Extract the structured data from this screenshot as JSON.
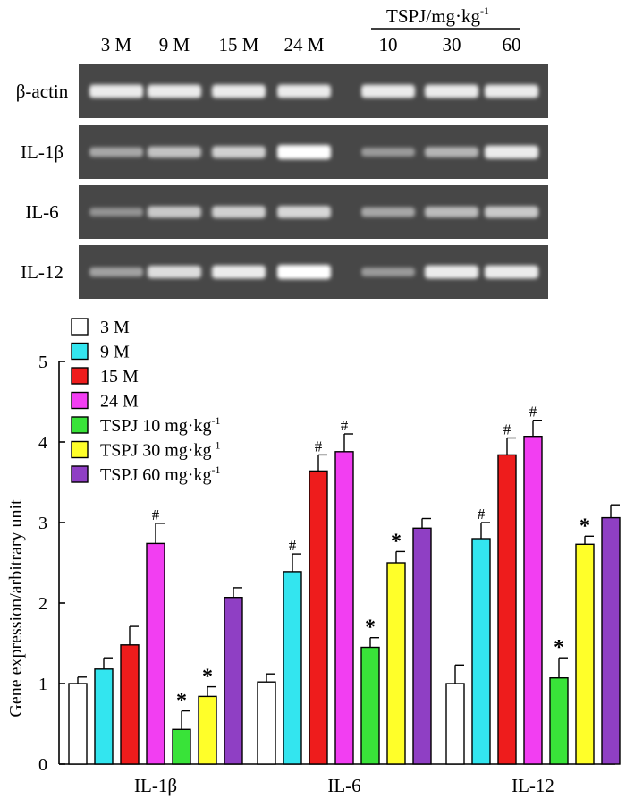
{
  "gel": {
    "lane_labels": [
      "3 M",
      "9 M",
      "15 M",
      "24 M",
      "10",
      "30",
      "60"
    ],
    "tspj_header": "TSPJ/mg·kg",
    "tspj_header_sup": "-1",
    "rows": [
      {
        "label": "β-actin",
        "intensity": [
          0.85,
          0.85,
          0.85,
          0.85,
          0.85,
          0.85,
          0.85
        ]
      },
      {
        "label": "IL-1β",
        "intensity": [
          0.35,
          0.55,
          0.65,
          1.0,
          0.25,
          0.45,
          0.85
        ]
      },
      {
        "label": "IL-6",
        "intensity": [
          0.2,
          0.6,
          0.65,
          0.7,
          0.35,
          0.5,
          0.6
        ]
      },
      {
        "label": "IL-12",
        "intensity": [
          0.3,
          0.75,
          0.85,
          1.0,
          0.25,
          0.85,
          0.85
        ]
      }
    ]
  },
  "chart_data": {
    "type": "bar",
    "categories": [
      "IL-1β",
      "IL-6",
      "IL-12"
    ],
    "ylabel": "Gene expression/arbitrary unit",
    "xlabel": "",
    "ylim": [
      0,
      5
    ],
    "yticks": [
      "0",
      "1",
      "2",
      "3",
      "4",
      "5"
    ],
    "series": [
      {
        "name": "3 M",
        "legend_text": "3 M",
        "legend_sup": "",
        "color": "#ffffff",
        "values": [
          1.0,
          1.02,
          1.0
        ],
        "errors": [
          0.08,
          0.1,
          0.23
        ],
        "marks": [
          "",
          "",
          ""
        ]
      },
      {
        "name": "9 M",
        "legend_text": "9 M",
        "legend_sup": "",
        "color": "#33e5ef",
        "values": [
          1.18,
          2.39,
          2.8
        ],
        "errors": [
          0.14,
          0.22,
          0.2
        ],
        "marks": [
          "",
          "#",
          "#"
        ]
      },
      {
        "name": "15 M",
        "legend_text": "15 M",
        "legend_sup": "",
        "color": "#ee1c1c",
        "values": [
          1.48,
          3.64,
          3.84
        ],
        "errors": [
          0.23,
          0.2,
          0.21
        ],
        "marks": [
          "",
          "#",
          "#"
        ]
      },
      {
        "name": "24 M",
        "legend_text": "24 M",
        "legend_sup": "",
        "color": "#f23ef2",
        "values": [
          2.74,
          3.88,
          4.07
        ],
        "errors": [
          0.25,
          0.22,
          0.2
        ],
        "marks": [
          "#",
          "#",
          "#"
        ]
      },
      {
        "name": "TSPJ 10 mg·kg-1",
        "legend_text": "TSPJ 10 mg·kg",
        "legend_sup": "-1",
        "color": "#39e339",
        "values": [
          0.43,
          1.45,
          1.07
        ],
        "errors": [
          0.23,
          0.12,
          0.25
        ],
        "marks": [
          "*",
          "*",
          "*"
        ]
      },
      {
        "name": "TSPJ 30 mg·kg-1",
        "legend_text": "TSPJ 30 mg·kg",
        "legend_sup": "-1",
        "color": "#ffff29",
        "values": [
          0.84,
          2.5,
          2.73
        ],
        "errors": [
          0.12,
          0.14,
          0.1
        ],
        "marks": [
          "*",
          "*",
          "*"
        ]
      },
      {
        "name": "TSPJ 60 mg·kg-1",
        "legend_text": "TSPJ 60 mg·kg",
        "legend_sup": "-1",
        "color": "#8f3fc4",
        "values": [
          2.07,
          2.93,
          3.06
        ],
        "errors": [
          0.12,
          0.12,
          0.16
        ],
        "marks": [
          "",
          "",
          ""
        ]
      }
    ]
  }
}
